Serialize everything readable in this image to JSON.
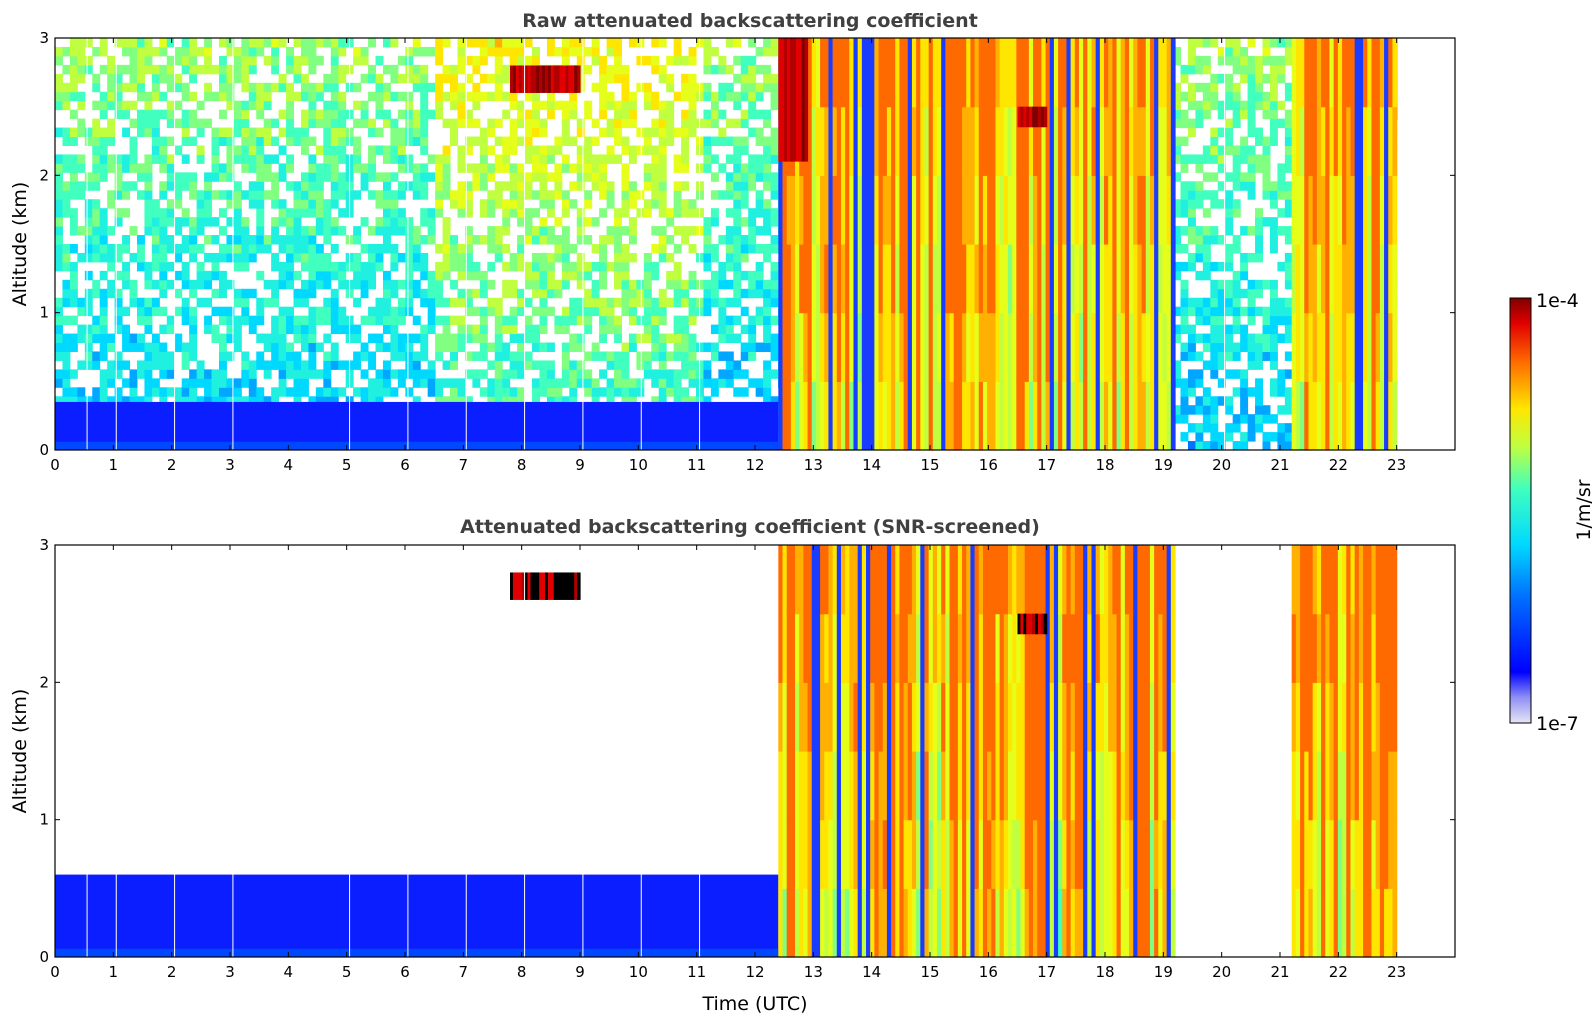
{
  "chart_data": [
    {
      "type": "heatmap",
      "title": "Raw attenuated backscattering coefficient",
      "xlabel": "",
      "ylabel": "Altitude (km)",
      "xlim": [
        0,
        24
      ],
      "ylim": [
        0,
        3
      ],
      "x_ticks": [
        "0",
        "1",
        "2",
        "3",
        "4",
        "5",
        "6",
        "7",
        "8",
        "9",
        "10",
        "11",
        "12",
        "13",
        "14",
        "15",
        "16",
        "17",
        "18",
        "19",
        "20",
        "21",
        "22",
        "23"
      ],
      "y_ticks": [
        "0",
        "1",
        "2",
        "3"
      ],
      "data_end_time": 23,
      "screened": false,
      "features": [
        {
          "kind": "boundary_layer",
          "start": 0,
          "end": 12.4,
          "top_km": 0.35
        },
        {
          "kind": "precipitation_columns",
          "start": 12.4,
          "end": 19.2,
          "base_km": 0.0,
          "top_km": 3.0
        },
        {
          "kind": "cloud_layer",
          "start": 12.4,
          "end": 12.9,
          "base_km": 2.1,
          "top_km": 3.0
        },
        {
          "kind": "cloud_layer",
          "start": 7.8,
          "end": 9.0,
          "base_km": 2.6,
          "top_km": 2.8
        },
        {
          "kind": "cloud_layer",
          "start": 16.5,
          "end": 17.0,
          "base_km": 2.35,
          "top_km": 2.5
        },
        {
          "kind": "cloud_layer",
          "start": 21.3,
          "end": 23.0,
          "base_km": 2.4,
          "top_km": 3.0
        },
        {
          "kind": "precipitation_columns",
          "start": 21.2,
          "end": 23.0,
          "base_km": 0.0,
          "top_km": 3.0
        }
      ]
    },
    {
      "type": "heatmap",
      "title": "Attenuated backscattering coefficient (SNR-screened)",
      "xlabel": "Time (UTC)",
      "ylabel": "Altitude (km)",
      "xlim": [
        0,
        24
      ],
      "ylim": [
        0,
        3
      ],
      "x_ticks": [
        "0",
        "1",
        "2",
        "3",
        "4",
        "5",
        "6",
        "7",
        "8",
        "9",
        "10",
        "11",
        "12",
        "13",
        "14",
        "15",
        "16",
        "17",
        "18",
        "19",
        "20",
        "21",
        "22",
        "23"
      ],
      "y_ticks": [
        "0",
        "1",
        "2",
        "3"
      ],
      "data_end_time": 23,
      "screened": true,
      "features": [
        {
          "kind": "boundary_layer",
          "start": 0,
          "end": 12.4,
          "top_km": 0.6
        },
        {
          "kind": "precipitation_columns",
          "start": 12.4,
          "end": 19.2,
          "base_km": 0.0,
          "top_km": 3.0
        },
        {
          "kind": "cloud_layer",
          "start": 7.8,
          "end": 9.0,
          "base_km": 2.6,
          "top_km": 2.8
        },
        {
          "kind": "cloud_layer",
          "start": 16.5,
          "end": 17.0,
          "base_km": 2.35,
          "top_km": 2.5
        },
        {
          "kind": "precipitation_columns",
          "start": 21.2,
          "end": 23.0,
          "base_km": 0.0,
          "top_km": 3.0
        }
      ]
    }
  ],
  "colorbar": {
    "label": "1/m/sr",
    "max_label": "1e-4",
    "min_label": "1e-7",
    "scale": "log",
    "colormap": "jet"
  }
}
